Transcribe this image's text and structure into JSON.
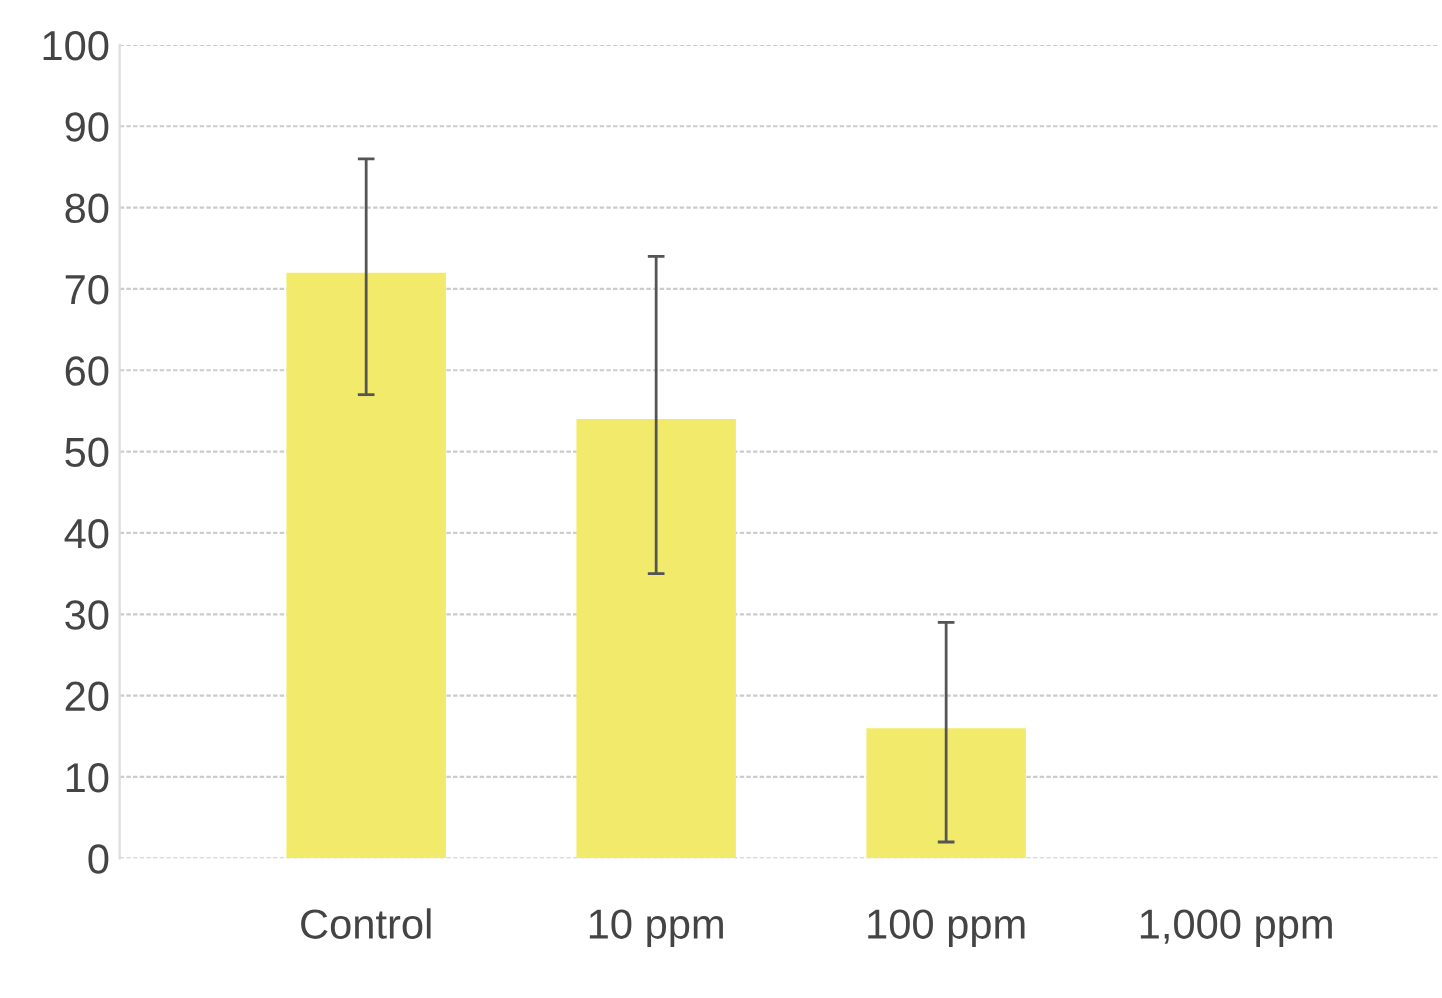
{
  "chart_data": {
    "type": "bar",
    "categories": [
      "Control",
      "10 ppm",
      "100 ppm",
      "1,000 ppm"
    ],
    "values": [
      72,
      54,
      16,
      0
    ],
    "color": "#f2ea6a",
    "errors": [
      [
        57,
        86
      ],
      [
        35,
        74
      ],
      [
        2,
        29
      ],
      null
    ],
    "ylim": [
      0,
      100
    ],
    "yticks": [
      0,
      10,
      20,
      30,
      40,
      50,
      60,
      70,
      80,
      90,
      100
    ],
    "grid": "y"
  }
}
